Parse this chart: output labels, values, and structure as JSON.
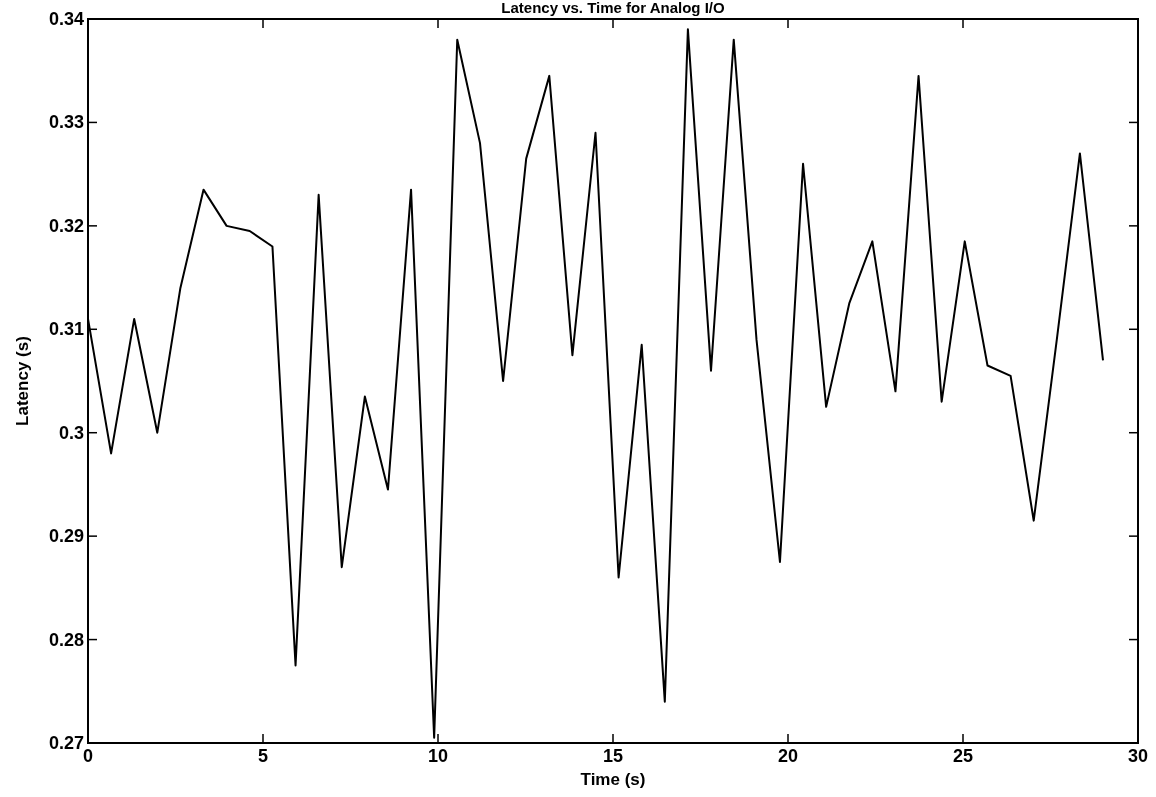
{
  "chart_data": {
    "type": "line",
    "title": "Latency vs. Time for Analog I/O",
    "xlabel": "Time (s)",
    "ylabel": "Latency (s)",
    "x": [
      0,
      0.66,
      1.32,
      1.98,
      2.64,
      3.3,
      3.96,
      4.62,
      5.27,
      5.93,
      6.59,
      7.25,
      7.91,
      8.57,
      9.23,
      9.89,
      10.55,
      11.2,
      11.86,
      12.52,
      13.18,
      13.84,
      14.5,
      15.16,
      15.82,
      16.48,
      17.14,
      17.8,
      18.45,
      19.1,
      19.77,
      20.43,
      21.09,
      21.75,
      22.41,
      23.07,
      23.73,
      24.39,
      25.05,
      25.7,
      26.36,
      27.02,
      27.68,
      28.34,
      29
    ],
    "series": [
      {
        "color": "#000000",
        "values": [
          0.311,
          0.298,
          0.311,
          0.3,
          0.314,
          0.3235,
          0.32,
          0.3195,
          0.318,
          0.2775,
          0.323,
          0.287,
          0.3035,
          0.2945,
          0.3235,
          0.2705,
          0.338,
          0.328,
          0.305,
          0.3265,
          0.3345,
          0.3075,
          0.329,
          0.286,
          0.3085,
          0.274,
          0.339,
          0.306,
          0.338,
          0.309,
          0.2875,
          0.326,
          0.3025,
          0.3125,
          0.3185,
          0.304,
          0.3345,
          0.303,
          0.3185,
          0.3065,
          0.3055,
          0.2915,
          0.309,
          0.327,
          0.307
        ]
      }
    ],
    "xlim": [
      0,
      30
    ],
    "xticks": [
      0,
      5,
      10,
      15,
      20,
      25,
      30
    ],
    "ylim": [
      0.27,
      0.34
    ],
    "yticks": [
      {
        "value": 0.27,
        "label": "0.27"
      },
      {
        "value": 0.28,
        "label": "0.28"
      },
      {
        "value": 0.29,
        "label": "0.29"
      },
      {
        "value": 0.3,
        "label": "0.3"
      },
      {
        "value": 0.31,
        "label": "0.31"
      },
      {
        "value": 0.32,
        "label": "0.32"
      },
      {
        "value": 0.33,
        "label": "0.33"
      },
      {
        "value": 0.34,
        "label": "0.34"
      }
    ],
    "grid": false,
    "marker": "none",
    "line_style": "solid"
  }
}
